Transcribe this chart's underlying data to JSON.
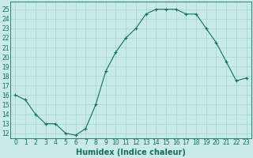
{
  "x": [
    0,
    1,
    2,
    3,
    4,
    5,
    6,
    7,
    8,
    9,
    10,
    11,
    12,
    13,
    14,
    15,
    16,
    17,
    18,
    19,
    20,
    21,
    22,
    23
  ],
  "y": [
    16.0,
    15.5,
    14.0,
    13.0,
    13.0,
    12.0,
    11.8,
    12.5,
    15.0,
    18.5,
    20.5,
    22.0,
    23.0,
    24.5,
    25.0,
    25.0,
    25.0,
    24.5,
    24.5,
    23.0,
    21.5,
    19.5,
    17.5,
    17.8
  ],
  "line_color": "#1a6b5a",
  "bg_color": "#c8eae8",
  "grid_color": "#9ecfcc",
  "xlabel": "Humidex (Indice chaleur)",
  "ylim": [
    11.5,
    25.8
  ],
  "xlim": [
    -0.5,
    23.5
  ],
  "yticks": [
    12,
    13,
    14,
    15,
    16,
    17,
    18,
    19,
    20,
    21,
    22,
    23,
    24,
    25
  ],
  "xticks": [
    0,
    1,
    2,
    3,
    4,
    5,
    6,
    7,
    8,
    9,
    10,
    11,
    12,
    13,
    14,
    15,
    16,
    17,
    18,
    19,
    20,
    21,
    22,
    23
  ],
  "tick_color": "#1a6b5a",
  "tick_fontsize": 5.5,
  "label_fontsize": 7.0,
  "label_fontweight": "bold"
}
